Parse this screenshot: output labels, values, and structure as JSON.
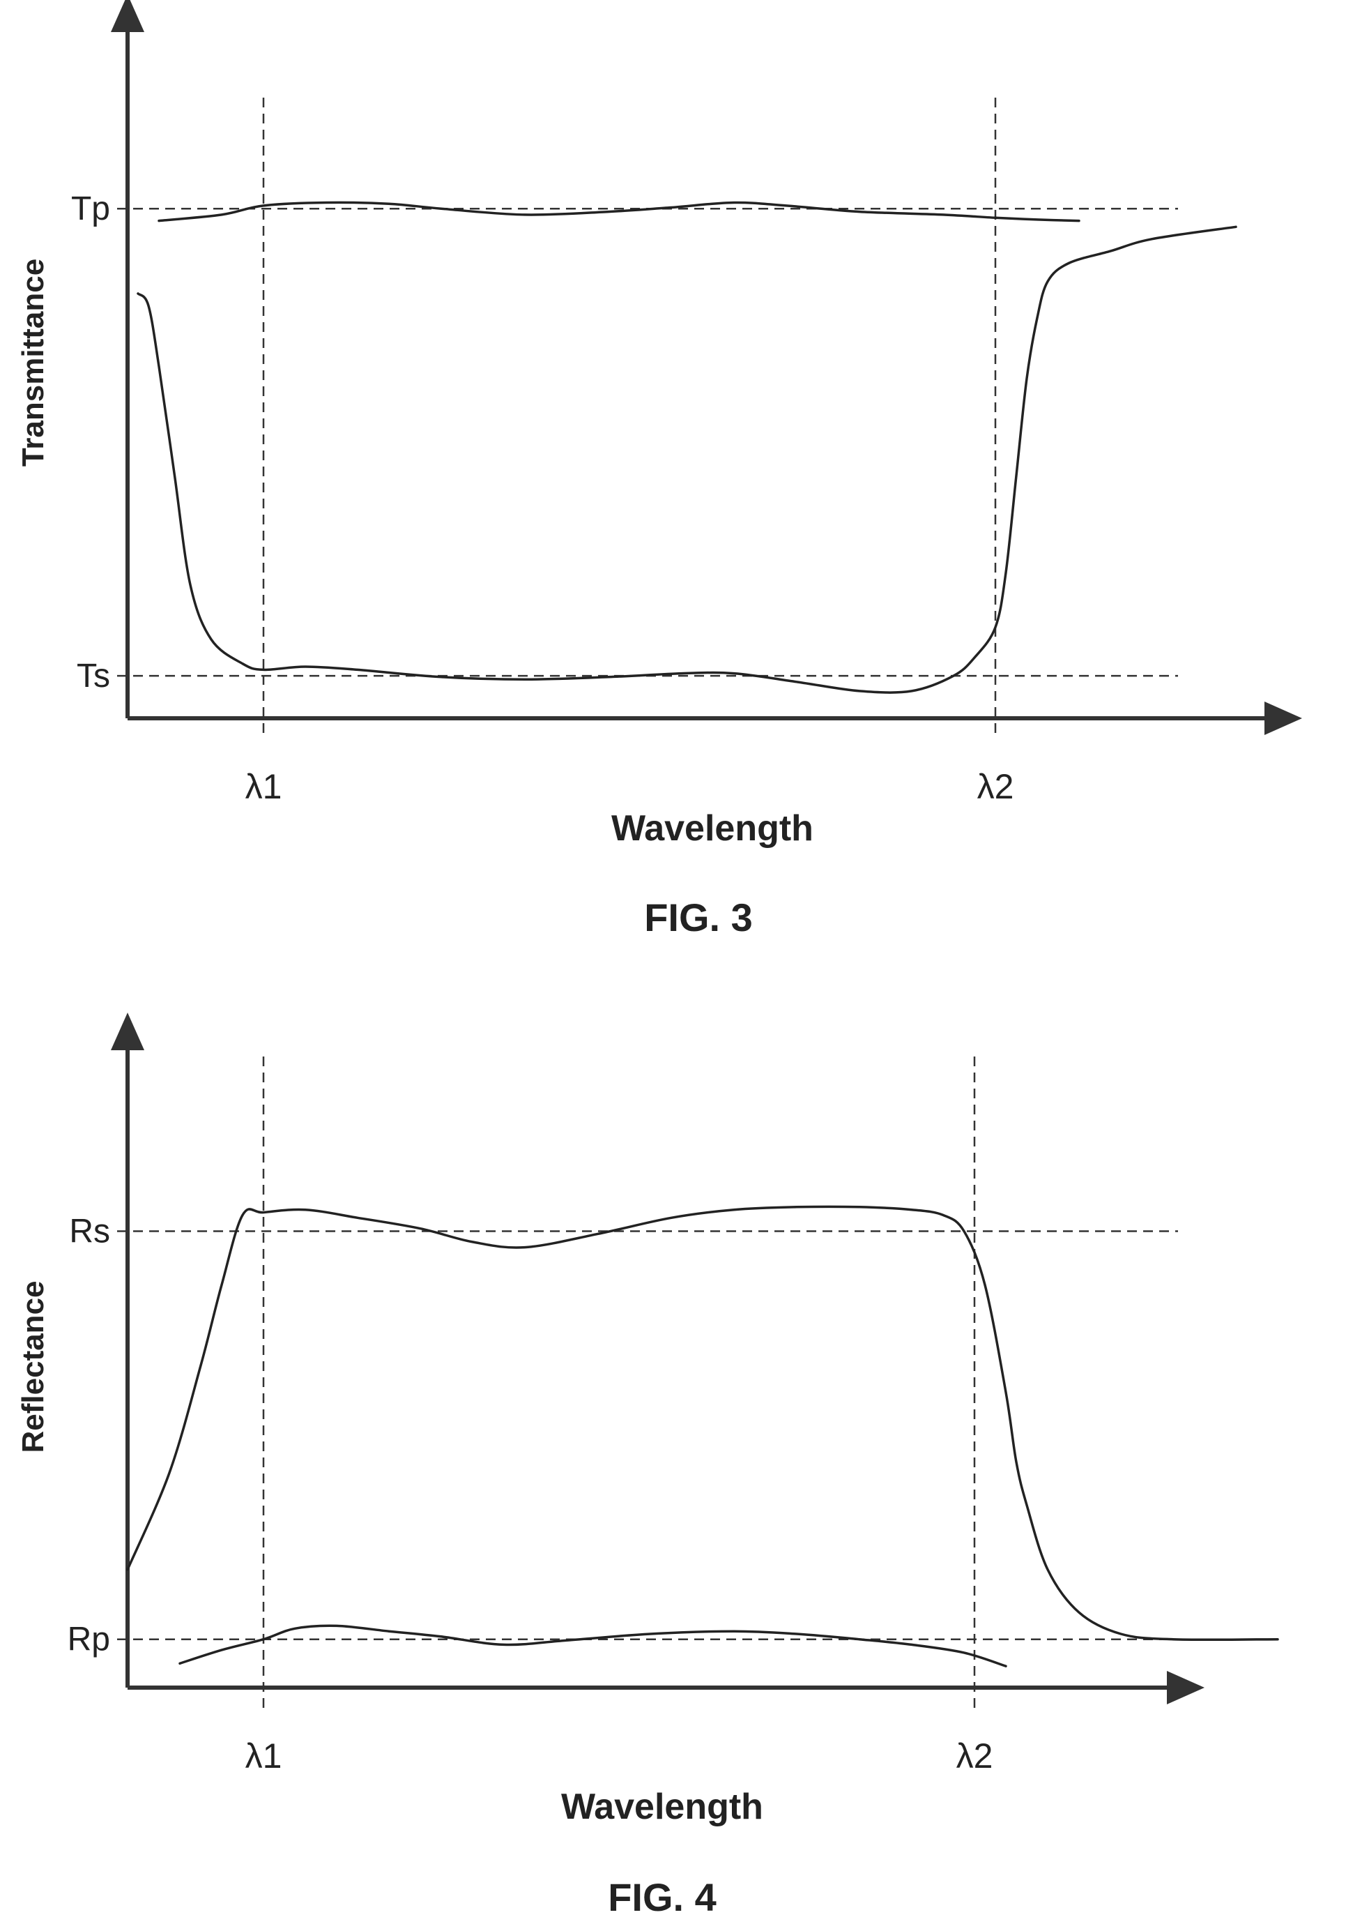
{
  "chart_data": [
    {
      "type": "line",
      "figure_label": "FIG. 3",
      "xlabel": "Wavelength",
      "ylabel": "Transmittance",
      "x_markers": [
        {
          "label": "λ1",
          "x": 0.13
        },
        {
          "label": "λ2",
          "x": 0.83
        }
      ],
      "y_markers": [
        {
          "label": "Tp",
          "y": 0.84
        },
        {
          "label": "Ts",
          "y": 0.07
        }
      ],
      "xlim": [
        0,
        1
      ],
      "ylim": [
        0,
        1
      ],
      "series": [
        {
          "x": [
            0.03,
            0.09,
            0.13,
            0.19,
            0.25,
            0.3,
            0.38,
            0.46,
            0.52,
            0.58,
            0.63,
            0.7,
            0.78,
            0.83,
            0.87,
            0.91
          ],
          "y": [
            0.82,
            0.83,
            0.845,
            0.85,
            0.848,
            0.84,
            0.83,
            0.835,
            0.842,
            0.85,
            0.845,
            0.835,
            0.83,
            0.825,
            0.822,
            0.82
          ]
        },
        {
          "x": [
            0.01,
            0.02,
            0.03,
            0.045,
            0.06,
            0.08,
            0.11,
            0.13,
            0.17,
            0.22,
            0.3,
            0.38,
            0.46,
            0.53,
            0.58,
            0.64,
            0.7,
            0.75,
            0.79,
            0.81,
            0.83,
            0.84,
            0.85,
            0.86,
            0.87,
            0.88,
            0.9,
            0.94,
            0.98,
            1.06
          ],
          "y": [
            0.7,
            0.68,
            0.58,
            0.4,
            0.22,
            0.13,
            0.09,
            0.08,
            0.085,
            0.08,
            0.068,
            0.064,
            0.068,
            0.074,
            0.074,
            0.06,
            0.045,
            0.045,
            0.07,
            0.1,
            0.15,
            0.24,
            0.4,
            0.56,
            0.66,
            0.72,
            0.75,
            0.77,
            0.79,
            0.81
          ]
        }
      ]
    },
    {
      "type": "line",
      "figure_label": "FIG. 4",
      "xlabel": "Wavelength",
      "ylabel": "Reflectance",
      "x_markers": [
        {
          "label": "λ1",
          "x": 0.13
        },
        {
          "label": "λ2",
          "x": 0.81
        }
      ],
      "y_markers": [
        {
          "label": "Rs",
          "y": 0.85
        },
        {
          "label": "Rp",
          "y": 0.09
        }
      ],
      "xlim": [
        0,
        1
      ],
      "ylim": [
        0,
        1
      ],
      "series": [
        {
          "x": [
            0.0,
            0.04,
            0.07,
            0.09,
            0.11,
            0.13,
            0.17,
            0.22,
            0.28,
            0.33,
            0.38,
            0.45,
            0.52,
            0.58,
            0.64,
            0.7,
            0.75,
            0.78,
            0.8,
            0.82,
            0.84,
            0.85,
            0.86,
            0.88,
            0.91,
            0.95,
            1.0,
            1.1
          ],
          "y": [
            0.22,
            0.4,
            0.6,
            0.75,
            0.88,
            0.885,
            0.89,
            0.875,
            0.855,
            0.83,
            0.82,
            0.845,
            0.875,
            0.89,
            0.895,
            0.895,
            0.89,
            0.88,
            0.85,
            0.75,
            0.55,
            0.42,
            0.34,
            0.22,
            0.14,
            0.1,
            0.09,
            0.09
          ]
        },
        {
          "x": [
            0.05,
            0.09,
            0.13,
            0.16,
            0.2,
            0.25,
            0.3,
            0.36,
            0.42,
            0.5,
            0.58,
            0.64,
            0.7,
            0.75,
            0.8,
            0.84
          ],
          "y": [
            0.045,
            0.07,
            0.09,
            0.11,
            0.115,
            0.105,
            0.095,
            0.08,
            0.088,
            0.1,
            0.105,
            0.1,
            0.09,
            0.08,
            0.065,
            0.04
          ]
        }
      ]
    }
  ]
}
